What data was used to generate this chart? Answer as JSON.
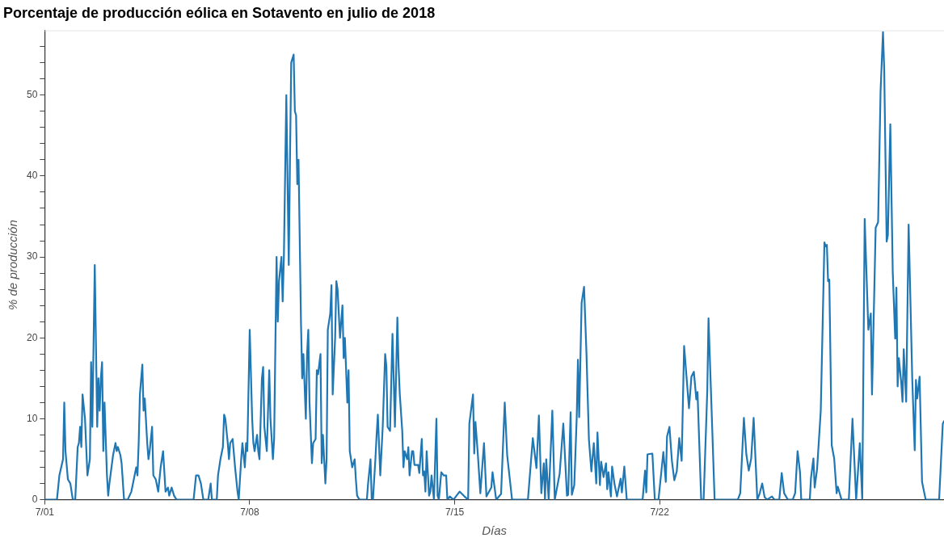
{
  "chart_data": {
    "type": "line",
    "title": "Porcentaje de producción eólica en Sotavento en julio de 2018",
    "xlabel": "Días",
    "ylabel": "% de producción",
    "xlim": [
      "2018-07-01",
      "2018-07-31T17:00"
    ],
    "xticks": [
      {
        "value": "2018-07-01",
        "label": "7/01"
      },
      {
        "value": "2018-07-08",
        "label": "7/08"
      },
      {
        "value": "2018-07-15",
        "label": "7/15"
      },
      {
        "value": "2018-07-22",
        "label": "7/22"
      }
    ],
    "ylim": [
      0,
      58
    ],
    "yticks": [
      0,
      {
        "value": 2,
        "label": null
      },
      {
        "value": 4,
        "label": null
      },
      {
        "value": 6,
        "label": null
      },
      {
        "value": 8,
        "label": null
      },
      10,
      {
        "value": 12,
        "label": null
      },
      {
        "value": 14,
        "label": null
      },
      {
        "value": 16,
        "label": null
      },
      {
        "value": 18,
        "label": null
      },
      20,
      {
        "value": 22,
        "label": null
      },
      {
        "value": 24,
        "label": null
      },
      {
        "value": 26,
        "label": null
      },
      {
        "value": 28,
        "label": null
      },
      30,
      {
        "value": 32,
        "label": null
      },
      {
        "value": 34,
        "label": null
      },
      {
        "value": 36,
        "label": null
      },
      {
        "value": 38,
        "label": null
      },
      40,
      {
        "value": 42,
        "label": null
      },
      {
        "value": 44,
        "label": null
      },
      {
        "value": 46,
        "label": null
      },
      {
        "value": 48,
        "label": null
      },
      50,
      {
        "value": 52,
        "label": null
      },
      {
        "value": 54,
        "label": null
      },
      {
        "value": 56,
        "label": null
      }
    ],
    "grid": false,
    "legend": false,
    "marker": "none",
    "line_style": "solid",
    "series": [
      {
        "color": "#1f77b4",
        "x": [
          "2018-07-01T00:00",
          "2018-07-01T10:00",
          "2018-07-01T12:00",
          "2018-07-01T15:00",
          "2018-07-01T16:00",
          "2018-07-01T17:00",
          "2018-07-01T19:00",
          "2018-07-01T21:00",
          "2018-07-01T23:00",
          "2018-07-02T01:00",
          "2018-07-02T03:00",
          "2018-07-02T04:00",
          "2018-07-02T05:00",
          "2018-07-02T06:00",
          "2018-07-02T07:00",
          "2018-07-02T09:00",
          "2018-07-02T11:00",
          "2018-07-02T13:00",
          "2018-07-02T14:00",
          "2018-07-02T15:00",
          "2018-07-02T17:00",
          "2018-07-02T19:00",
          "2018-07-02T20:00",
          "2018-07-02T21:00",
          "2018-07-02T22:00",
          "2018-07-02T23:00",
          "2018-07-03T00:00",
          "2018-07-03T01:00",
          "2018-07-03T03:00",
          "2018-07-03T04:00",
          "2018-07-03T05:00",
          "2018-07-03T08:00",
          "2018-07-03T10:00",
          "2018-07-03T11:00",
          "2018-07-03T12:00",
          "2018-07-03T14:00",
          "2018-07-03T15:00",
          "2018-07-03T17:00",
          "2018-07-03T20:00",
          "2018-07-03T23:00",
          "2018-07-04T01:00",
          "2018-07-04T03:00",
          "2018-07-04T04:00",
          "2018-07-04T05:00",
          "2018-07-04T06:00",
          "2018-07-04T08:00",
          "2018-07-04T09:00",
          "2018-07-04T10:00",
          "2018-07-04T12:00",
          "2018-07-04T13:00",
          "2018-07-04T14:00",
          "2018-07-04T16:00",
          "2018-07-04T17:00",
          "2018-07-04T19:00",
          "2018-07-04T21:00",
          "2018-07-04T23:00",
          "2018-07-05T01:00",
          "2018-07-05T03:00",
          "2018-07-05T05:00",
          "2018-07-05T06:00",
          "2018-07-05T08:00",
          "2018-07-05T10:00",
          "2018-07-05T12:00",
          "2018-07-06T02:00",
          "2018-07-06T04:00",
          "2018-07-06T06:00",
          "2018-07-06T08:00",
          "2018-07-06T10:00",
          "2018-07-06T14:00",
          "2018-07-06T16:00",
          "2018-07-06T17:00",
          "2018-07-06T21:00",
          "2018-07-06T22:00",
          "2018-07-07T00:00",
          "2018-07-07T02:00",
          "2018-07-07T03:00",
          "2018-07-07T04:00",
          "2018-07-07T06:00",
          "2018-07-07T07:00",
          "2018-07-07T08:00",
          "2018-07-07T10:00",
          "2018-07-07T12:00",
          "2018-07-07T14:00",
          "2018-07-07T15:00",
          "2018-07-07T17:00",
          "2018-07-07T18:00",
          "2018-07-07T20:00",
          "2018-07-07T21:00",
          "2018-07-07T22:00",
          "2018-07-08T00:00",
          "2018-07-08T02:00",
          "2018-07-08T03:00",
          "2018-07-08T04:00",
          "2018-07-08T06:00",
          "2018-07-08T07:00",
          "2018-07-08T08:00",
          "2018-07-08T10:00",
          "2018-07-08T11:00",
          "2018-07-08T12:00",
          "2018-07-08T14:00",
          "2018-07-08T15:00",
          "2018-07-08T16:00",
          "2018-07-08T17:00",
          "2018-07-08T19:00",
          "2018-07-08T20:00",
          "2018-07-08T22:00",
          "2018-07-08T23:00",
          "2018-07-09T00:00",
          "2018-07-09T02:00",
          "2018-07-09T03:00",
          "2018-07-09T04:00",
          "2018-07-09T06:00",
          "2018-07-09T08:00",
          "2018-07-09T09:00",
          "2018-07-09T10:00",
          "2018-07-09T12:00",
          "2018-07-09T13:00",
          "2018-07-09T14:00",
          "2018-07-09T15:00",
          "2018-07-09T16:00",
          "2018-07-09T18:00",
          "2018-07-09T19:00",
          "2018-07-09T20:00",
          "2018-07-09T22:00",
          "2018-07-09T23:00",
          "2018-07-10T00:00",
          "2018-07-10T01:00",
          "2018-07-10T03:00",
          "2018-07-10T04:00",
          "2018-07-10T06:00",
          "2018-07-10T07:00",
          "2018-07-10T08:00",
          "2018-07-10T10:00",
          "2018-07-10T11:00",
          "2018-07-10T12:00",
          "2018-07-10T14:00",
          "2018-07-10T15:00",
          "2018-07-10T16:00",
          "2018-07-10T18:00",
          "2018-07-10T19:00",
          "2018-07-10T20:00",
          "2018-07-10T22:00",
          "2018-07-10T23:00",
          "2018-07-11T00:00",
          "2018-07-11T02:00",
          "2018-07-11T04:00",
          "2018-07-11T05:00",
          "2018-07-11T06:00",
          "2018-07-11T08:00",
          "2018-07-11T09:00",
          "2018-07-11T10:00",
          "2018-07-11T12:00",
          "2018-07-11T14:00",
          "2018-07-11T15:00",
          "2018-07-11T16:00",
          "2018-07-11T18:00",
          "2018-07-12T00:00",
          "2018-07-12T01:00",
          "2018-07-12T03:00",
          "2018-07-12T04:00",
          "2018-07-12T05:00",
          "2018-07-12T07:00",
          "2018-07-12T08:00",
          "2018-07-12T09:00",
          "2018-07-12T11:00",
          "2018-07-12T13:00",
          "2018-07-12T15:00",
          "2018-07-12T16:00",
          "2018-07-12T17:00",
          "2018-07-12T19:00",
          "2018-07-12T21:00",
          "2018-07-12T22:00",
          "2018-07-12T23:00",
          "2018-07-13T01:00",
          "2018-07-13T02:00",
          "2018-07-13T03:00",
          "2018-07-13T05:00",
          "2018-07-13T06:00",
          "2018-07-13T07:00",
          "2018-07-13T09:00",
          "2018-07-13T10:00",
          "2018-07-13T11:00",
          "2018-07-13T13:00",
          "2018-07-13T14:00",
          "2018-07-13T15:00",
          "2018-07-13T17:00",
          "2018-07-13T18:00",
          "2018-07-13T19:00",
          "2018-07-13T21:00",
          "2018-07-13T22:00",
          "2018-07-13T23:00",
          "2018-07-14T00:00",
          "2018-07-14T01:00",
          "2018-07-14T03:00",
          "2018-07-14T04:00",
          "2018-07-14T05:00",
          "2018-07-14T07:00",
          "2018-07-14T09:00",
          "2018-07-14T10:00",
          "2018-07-14T11:00",
          "2018-07-14T13:00",
          "2018-07-14T15:00",
          "2018-07-14T17:00",
          "2018-07-14T18:00",
          "2018-07-14T20:00",
          "2018-07-14T23:00",
          "2018-07-15T04:00",
          "2018-07-15T08:00",
          "2018-07-15T11:00",
          "2018-07-15T12:00",
          "2018-07-15T15:00",
          "2018-07-15T16:00",
          "2018-07-15T17:00",
          "2018-07-15T19:00",
          "2018-07-15T21:00",
          "2018-07-16T00:00",
          "2018-07-16T02:00",
          "2018-07-16T06:00",
          "2018-07-16T07:00",
          "2018-07-16T10:00",
          "2018-07-16T14:00",
          "2018-07-16T17:00",
          "2018-07-16T19:00",
          "2018-07-16T23:00",
          "2018-07-17T12:00",
          "2018-07-17T16:00",
          "2018-07-17T19:00",
          "2018-07-17T21:00",
          "2018-07-17T23:00",
          "2018-07-18T01:00",
          "2018-07-18T02:00",
          "2018-07-18T03:00",
          "2018-07-18T05:00",
          "2018-07-18T08:00",
          "2018-07-18T10:00",
          "2018-07-18T14:00",
          "2018-07-18T17:00",
          "2018-07-18T20:00",
          "2018-07-18T21:00",
          "2018-07-18T23:00",
          "2018-07-19T00:00",
          "2018-07-19T02:00",
          "2018-07-19T04:00",
          "2018-07-19T05:00",
          "2018-07-19T06:00",
          "2018-07-19T08:00",
          "2018-07-19T10:00",
          "2018-07-19T12:00",
          "2018-07-19T14:00",
          "2018-07-19T16:00",
          "2018-07-19T18:00",
          "2018-07-19T20:00",
          "2018-07-19T21:00",
          "2018-07-19T23:00",
          "2018-07-20T00:00",
          "2018-07-20T02:00",
          "2018-07-20T04:00",
          "2018-07-20T05:00",
          "2018-07-20T06:00",
          "2018-07-20T08:00",
          "2018-07-20T09:00",
          "2018-07-20T11:00",
          "2018-07-20T13:00",
          "2018-07-20T16:00",
          "2018-07-20T17:00",
          "2018-07-20T19:00",
          "2018-07-20T21:00",
          "2018-07-21T10:00",
          "2018-07-21T12:00",
          "2018-07-21T13:00",
          "2018-07-21T14:00",
          "2018-07-21T18:00",
          "2018-07-21T20:00",
          "2018-07-21T23:00",
          "2018-07-22T03:00",
          "2018-07-22T05:00",
          "2018-07-22T06:00",
          "2018-07-22T08:00",
          "2018-07-22T10:00",
          "2018-07-22T12:00",
          "2018-07-22T14:00",
          "2018-07-22T16:00",
          "2018-07-22T18:00",
          "2018-07-22T20:00",
          "2018-07-23T00:00",
          "2018-07-23T02:00",
          "2018-07-23T04:00",
          "2018-07-23T06:00",
          "2018-07-23T07:00",
          "2018-07-23T10:00",
          "2018-07-23T12:00",
          "2018-07-23T15:00",
          "2018-07-23T16:00",
          "2018-07-23T19:00",
          "2018-07-23T21:00",
          "2018-07-24T16:00",
          "2018-07-24T18:00",
          "2018-07-24T21:00",
          "2018-07-24T23:00",
          "2018-07-25T01:00",
          "2018-07-25T03:00",
          "2018-07-25T05:00",
          "2018-07-25T08:00",
          "2018-07-25T10:00",
          "2018-07-25T12:00",
          "2018-07-25T14:00",
          "2018-07-25T16:00",
          "2018-07-25T20:00",
          "2018-07-25T22:00",
          "2018-07-26T02:00",
          "2018-07-26T04:00",
          "2018-07-26T06:00",
          "2018-07-26T09:00",
          "2018-07-26T13:00",
          "2018-07-26T15:00",
          "2018-07-26T17:00",
          "2018-07-26T19:00",
          "2018-07-26T20:00",
          "2018-07-27T03:00",
          "2018-07-27T04:00",
          "2018-07-27T06:00",
          "2018-07-27T07:00",
          "2018-07-27T09:00",
          "2018-07-27T12:00",
          "2018-07-27T15:00",
          "2018-07-27T16:00",
          "2018-07-27T17:00",
          "2018-07-27T18:00",
          "2018-07-27T19:00",
          "2018-07-27T21:00",
          "2018-07-27T23:00",
          "2018-07-28T01:00",
          "2018-07-28T02:00",
          "2018-07-28T05:00",
          "2018-07-28T11:00",
          "2018-07-28T14:00",
          "2018-07-28T17:00",
          "2018-07-28T20:00",
          "2018-07-28T22:00",
          "2018-07-29T00:00",
          "2018-07-29T03:00",
          "2018-07-29T05:00",
          "2018-07-29T06:00",
          "2018-07-29T09:00",
          "2018-07-29T11:00",
          "2018-07-29T13:00",
          "2018-07-29T15:00",
          "2018-07-29T16:00",
          "2018-07-29T18:00",
          "2018-07-29T19:00",
          "2018-07-29T21:00",
          "2018-07-29T23:00",
          "2018-07-30T01:00",
          "2018-07-30T02:00",
          "2018-07-30T03:00",
          "2018-07-30T04:00",
          "2018-07-30T06:00",
          "2018-07-30T07:00",
          "2018-07-30T08:00",
          "2018-07-30T10:00",
          "2018-07-30T12:00",
          "2018-07-30T15:00",
          "2018-07-30T17:00",
          "2018-07-30T18:00",
          "2018-07-30T19:00",
          "2018-07-30T21:00",
          "2018-07-30T23:00",
          "2018-07-31T02:00",
          "2018-07-31T13:00",
          "2018-07-31T16:00",
          "2018-07-31T17:00"
        ],
        "values": [
          0,
          0,
          3,
          5,
          12,
          6,
          2.5,
          2,
          0,
          0,
          6.5,
          7,
          9,
          6.5,
          13,
          10,
          3,
          5,
          17,
          9,
          29,
          9,
          15,
          11,
          15,
          17,
          6,
          12,
          3,
          0.5,
          2,
          5.5,
          7,
          6,
          6.5,
          5.5,
          4.5,
          0,
          0,
          1,
          2.5,
          4,
          3,
          7,
          13,
          16.7,
          11,
          12.5,
          7,
          5,
          6,
          9,
          3,
          2.5,
          1,
          4,
          6,
          1,
          1.5,
          0.5,
          1.5,
          0.5,
          0,
          0,
          3,
          3,
          2,
          0,
          0,
          2,
          0,
          0,
          3,
          5,
          6.5,
          10.5,
          10,
          7,
          5,
          7,
          7.5,
          4,
          1,
          0,
          5,
          7,
          4,
          7,
          6,
          21,
          10,
          7,
          6,
          8,
          6,
          5,
          15,
          16.4,
          9,
          6,
          11,
          16,
          10,
          5,
          7.5,
          30,
          22,
          27,
          30,
          24.5,
          30,
          50,
          29,
          42,
          54,
          55,
          48,
          47.5,
          39,
          42,
          22,
          15,
          18,
          10,
          18,
          21,
          12,
          4.5,
          7,
          7.5,
          16,
          15.5,
          18,
          4.5,
          8,
          2,
          5,
          21,
          23,
          26.5,
          13,
          20,
          27,
          26,
          20,
          24,
          17.5,
          20,
          12,
          16,
          6,
          4,
          5,
          2.5,
          0.5,
          0,
          0,
          2,
          5,
          0,
          0,
          5,
          8,
          10.5,
          3,
          9,
          18,
          16.5,
          9,
          8.5,
          20.5,
          15,
          9,
          22.5,
          16.5,
          13,
          8.5,
          4,
          6,
          5,
          6.5,
          3,
          6,
          6,
          4.3,
          4.3,
          4.3,
          3.3,
          7.5,
          3,
          3.5,
          1,
          6,
          0.5,
          1,
          3,
          0,
          10,
          0.5,
          0,
          3.4,
          3,
          3,
          0,
          0.4,
          0,
          1,
          0.4,
          0,
          9.4,
          13,
          5.7,
          9.6,
          5.5,
          0.8,
          7,
          0.4,
          1.5,
          3.4,
          0,
          0.7,
          12,
          5.5,
          0,
          0,
          7.6,
          3.9,
          10.4,
          0.8,
          4.5,
          0,
          5,
          0,
          11,
          0,
          3.2,
          9.4,
          0.5,
          0.6,
          10.8,
          0.6,
          1.8,
          10.2,
          17.3,
          10.2,
          24.3,
          26.3,
          18,
          7.4,
          3.5,
          7,
          2,
          8.3,
          1.8,
          4.7,
          2.8,
          4.5,
          1.3,
          3.4,
          0.4,
          4.1,
          1.9,
          0.4,
          2.6,
          0.9,
          4.1,
          0,
          0,
          3.6,
          0.9,
          5.6,
          5.7,
          0,
          0,
          5.9,
          2.2,
          7.8,
          9,
          4.8,
          2.4,
          3.5,
          7.6,
          4.8,
          19,
          11.3,
          15.2,
          15.8,
          12.4,
          13.3,
          0,
          0,
          13.5,
          22.4,
          9,
          0,
          0,
          0.8,
          10.1,
          5.6,
          3.6,
          5.1,
          10.1,
          0,
          0.8,
          2,
          0.3,
          0,
          0.4,
          0,
          0,
          3.3,
          0.8,
          0,
          0,
          0.8,
          6,
          3.4,
          0,
          0,
          2.7,
          5.1,
          1.5,
          3.8,
          11,
          31.8,
          31.3,
          31.5,
          27,
          27.2,
          6.7,
          5.1,
          0.8,
          1.6,
          0,
          0,
          10,
          0,
          7,
          0,
          34.7,
          21,
          23,
          13,
          33.6,
          34.3,
          50.4,
          57.8,
          53.2,
          31.9,
          32.7,
          46.4,
          28.1,
          19.9,
          26.2,
          14,
          17.5,
          14.4,
          12.1,
          18.6,
          12.1,
          34,
          14.8,
          6.1,
          14.8,
          12.5,
          15.2,
          2.2,
          0,
          0,
          9.4,
          9.7
        ]
      }
    ]
  }
}
